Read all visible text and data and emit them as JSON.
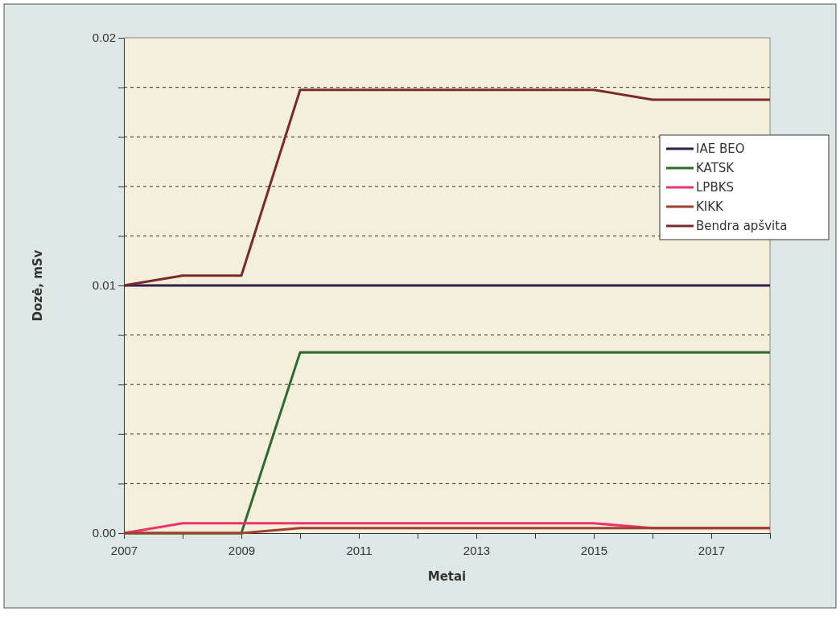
{
  "chart_data": {
    "type": "line",
    "xlabel": "Metai",
    "ylabel": "Dozė, mSv",
    "x": [
      2007,
      2008,
      2009,
      2010,
      2011,
      2012,
      2013,
      2014,
      2015,
      2016,
      2017,
      2018
    ],
    "series": [
      {
        "name": "IAE BEO",
        "color": "#2e1f4a",
        "values": [
          0.01,
          0.01,
          0.01,
          0.01,
          0.01,
          0.01,
          0.01,
          0.01,
          0.01,
          0.01,
          0.01,
          0.01
        ]
      },
      {
        "name": "KATSK",
        "color": "#2d6a2d",
        "values": [
          0,
          0,
          0,
          0.0073,
          0.0073,
          0.0073,
          0.0073,
          0.0073,
          0.0073,
          0.0073,
          0.0073,
          0.0073
        ]
      },
      {
        "name": "LPBKS",
        "color": "#e8336e",
        "values": [
          0,
          0.0004,
          0.0004,
          0.0004,
          0.0004,
          0.0004,
          0.0004,
          0.0004,
          0.0004,
          0.0002,
          0.0002,
          0.0002
        ]
      },
      {
        "name": "KIKK",
        "color": "#a0402a",
        "values": [
          0,
          0,
          0,
          0.0002,
          0.0002,
          0.0002,
          0.0002,
          0.0002,
          0.0002,
          0.0002,
          0.0002,
          0.0002
        ]
      },
      {
        "name": "Bendra apšvita",
        "color": "#7a2a2a",
        "values": [
          0.01,
          0.0104,
          0.0104,
          0.0179,
          0.0179,
          0.0179,
          0.0179,
          0.0179,
          0.0179,
          0.0175,
          0.0175,
          0.0175
        ]
      }
    ],
    "xlim": [
      2007,
      2018
    ],
    "xticks": [
      2007,
      {
        "value": 2008,
        "label": null
      },
      2009,
      {
        "value": 2010,
        "label": null
      },
      2011,
      {
        "value": 2012,
        "label": null
      },
      2013,
      {
        "value": 2014,
        "label": null
      },
      2015,
      {
        "value": 2016,
        "label": null
      },
      2017,
      {
        "value": 2018,
        "label": null
      }
    ],
    "ylim": [
      0,
      0.02
    ],
    "yticks": [
      {
        "value": 0,
        "label": "0.00"
      },
      {
        "value": 0.002,
        "label": null
      },
      {
        "value": 0.004,
        "label": null
      },
      {
        "value": 0.006,
        "label": null
      },
      {
        "value": 0.008,
        "label": null
      },
      0.01,
      {
        "value": 0.012,
        "label": null
      },
      {
        "value": 0.014,
        "label": null
      },
      {
        "value": 0.016,
        "label": null
      },
      {
        "value": 0.018,
        "label": null
      },
      0.02
    ],
    "grid": "y",
    "legend": "right",
    "line_style": "solid",
    "marker": "none"
  }
}
